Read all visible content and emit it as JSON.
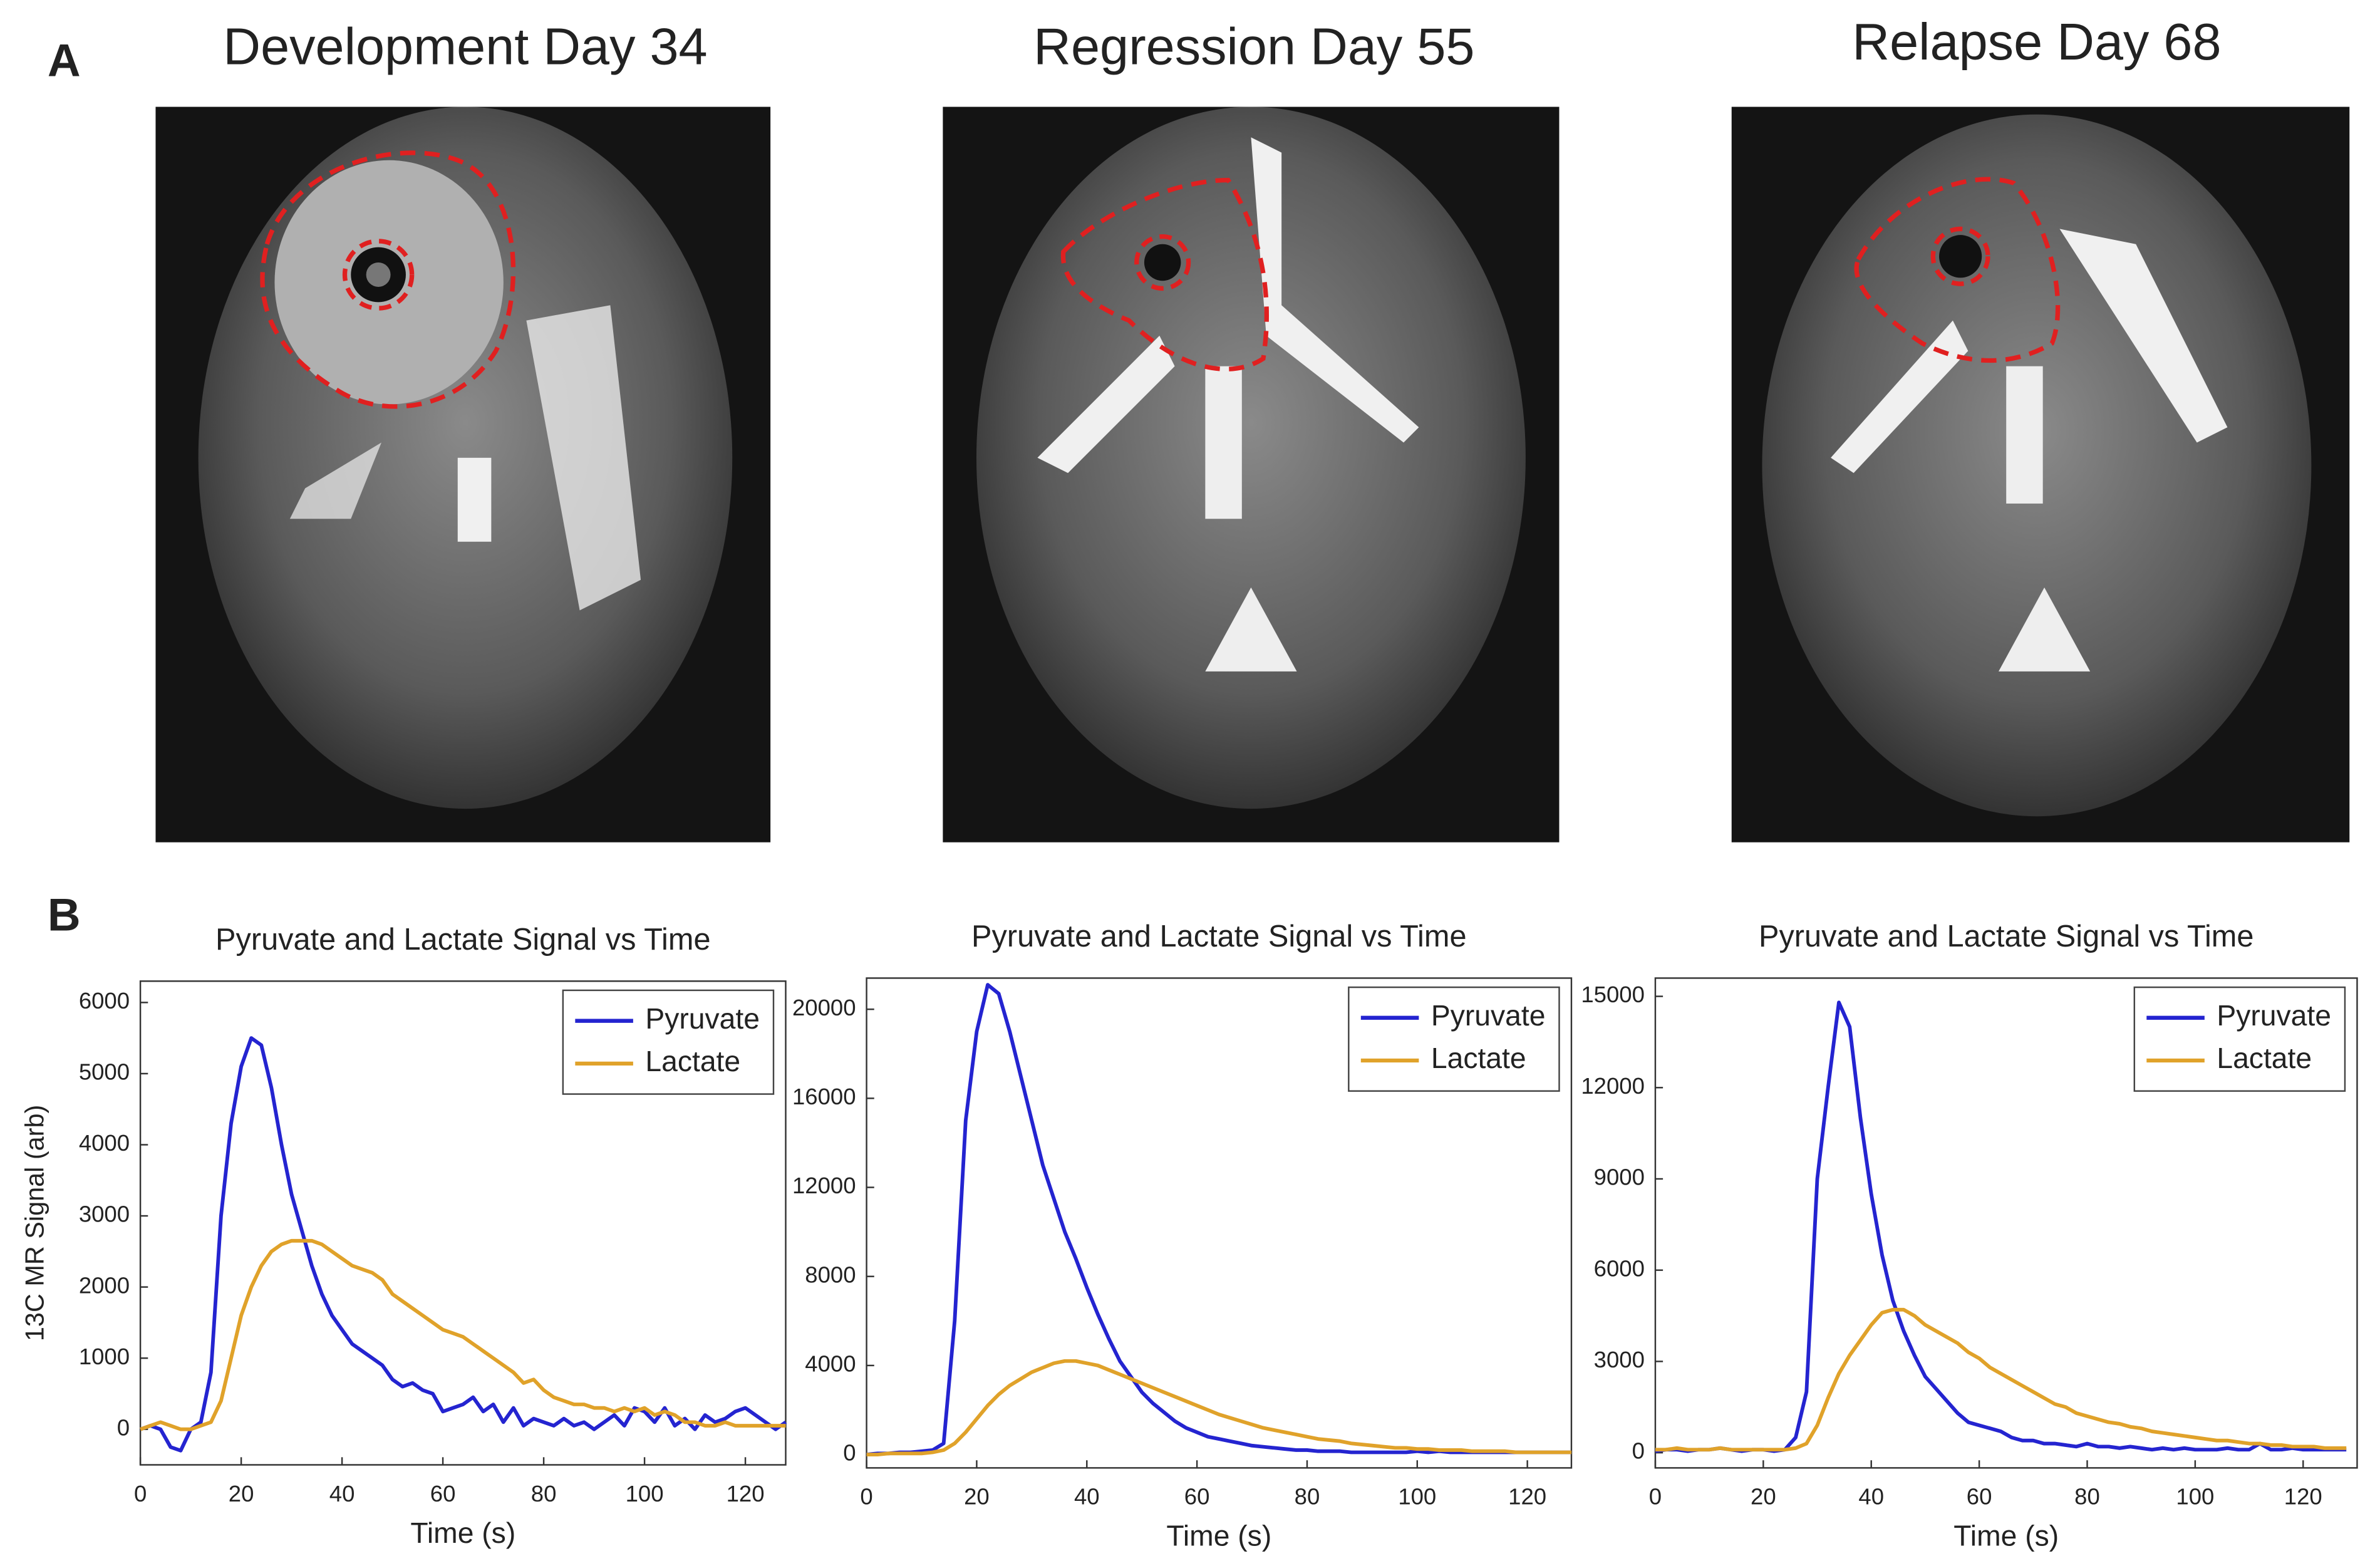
{
  "figure_labels": [
    "A",
    "B"
  ],
  "images": [
    {
      "title": "Development Day 34"
    },
    {
      "title": "Regression Day 55"
    },
    {
      "title": "Relapse Day 68"
    }
  ],
  "chart_data": [
    {
      "type": "line",
      "title": "Pyruvate and Lactate Signal vs Time",
      "xlabel": "Time (s)",
      "ylabel": "13C MR Signal (arb)",
      "x": [
        0,
        2,
        4,
        6,
        8,
        10,
        12,
        14,
        16,
        18,
        20,
        22,
        24,
        26,
        28,
        30,
        32,
        34,
        36,
        38,
        40,
        42,
        44,
        46,
        48,
        50,
        52,
        54,
        56,
        58,
        60,
        62,
        64,
        66,
        68,
        70,
        72,
        74,
        76,
        78,
        80,
        82,
        84,
        86,
        88,
        90,
        92,
        94,
        96,
        98,
        100,
        102,
        104,
        106,
        108,
        110,
        112,
        114,
        116,
        118,
        120,
        122,
        124,
        126,
        128
      ],
      "series": [
        {
          "name": "Pyruvate",
          "color": "#2424d0",
          "values": [
            0,
            50,
            0,
            -250,
            -300,
            0,
            100,
            800,
            3000,
            4300,
            5100,
            5500,
            5400,
            4800,
            4000,
            3300,
            2800,
            2300,
            1900,
            1600,
            1400,
            1200,
            1100,
            1000,
            900,
            700,
            600,
            650,
            550,
            500,
            250,
            300,
            350,
            450,
            250,
            350,
            100,
            300,
            50,
            150,
            100,
            50,
            150,
            50,
            100,
            0,
            100,
            200,
            50,
            300,
            250,
            100,
            300,
            50,
            150,
            0,
            200,
            100,
            150,
            250,
            300,
            200,
            100,
            0,
            100
          ]
        },
        {
          "name": "Lactate",
          "color": "#e0a22a",
          "values": [
            0,
            50,
            100,
            50,
            0,
            0,
            50,
            100,
            400,
            1000,
            1600,
            2000,
            2300,
            2500,
            2600,
            2650,
            2650,
            2650,
            2600,
            2500,
            2400,
            2300,
            2250,
            2200,
            2100,
            1900,
            1800,
            1700,
            1600,
            1500,
            1400,
            1350,
            1300,
            1200,
            1100,
            1000,
            900,
            800,
            650,
            700,
            550,
            450,
            400,
            350,
            350,
            300,
            300,
            250,
            300,
            250,
            300,
            200,
            250,
            200,
            100,
            100,
            50,
            50,
            100,
            50,
            50,
            50,
            50,
            50,
            50
          ]
        }
      ],
      "xlim": [
        0,
        128
      ],
      "xticks": [
        0,
        20,
        40,
        60,
        80,
        100,
        120
      ],
      "ylim": [
        -500,
        6300
      ],
      "yticks": [
        0,
        1000,
        2000,
        3000,
        4000,
        5000,
        6000
      ],
      "legend": "upper right",
      "grid": false
    },
    {
      "type": "line",
      "title": "Pyruvate and Lactate Signal vs Time",
      "xlabel": "Time (s)",
      "x": [
        0,
        2,
        4,
        6,
        8,
        10,
        12,
        14,
        16,
        18,
        20,
        22,
        24,
        26,
        28,
        30,
        32,
        34,
        36,
        38,
        40,
        42,
        44,
        46,
        48,
        50,
        52,
        54,
        56,
        58,
        60,
        62,
        64,
        66,
        68,
        70,
        72,
        74,
        76,
        78,
        80,
        82,
        84,
        86,
        88,
        90,
        92,
        94,
        96,
        98,
        100,
        102,
        104,
        106,
        108,
        110,
        112,
        114,
        116,
        118,
        120,
        122,
        124,
        126,
        128
      ],
      "series": [
        {
          "name": "Pyruvate",
          "color": "#2424d0",
          "values": [
            0,
            50,
            50,
            100,
            100,
            150,
            200,
            500,
            6000,
            15000,
            19000,
            21100,
            20700,
            19000,
            17000,
            15000,
            13000,
            11500,
            10000,
            8800,
            7500,
            6300,
            5200,
            4200,
            3500,
            2800,
            2300,
            1900,
            1500,
            1200,
            1000,
            800,
            700,
            600,
            500,
            400,
            350,
            300,
            250,
            200,
            200,
            150,
            150,
            150,
            100,
            100,
            100,
            100,
            100,
            100,
            150,
            100,
            150,
            100,
            100,
            100,
            100,
            100,
            100,
            100,
            100,
            100,
            100,
            100,
            100
          ]
        },
        {
          "name": "Lactate",
          "color": "#e0a22a",
          "values": [
            0,
            0,
            50,
            50,
            50,
            50,
            100,
            200,
            500,
            1000,
            1600,
            2200,
            2700,
            3100,
            3400,
            3700,
            3900,
            4100,
            4200,
            4200,
            4100,
            4000,
            3800,
            3600,
            3400,
            3200,
            3000,
            2800,
            2600,
            2400,
            2200,
            2000,
            1800,
            1650,
            1500,
            1350,
            1200,
            1100,
            1000,
            900,
            800,
            700,
            650,
            600,
            500,
            450,
            400,
            350,
            300,
            300,
            250,
            250,
            200,
            200,
            200,
            150,
            150,
            150,
            150,
            100,
            100,
            100,
            100,
            100,
            100
          ]
        }
      ],
      "xlim": [
        0,
        128
      ],
      "xticks": [
        0,
        20,
        40,
        60,
        80,
        100,
        120
      ],
      "ylim": [
        -600,
        21400
      ],
      "yticks": [
        0,
        4000,
        8000,
        12000,
        16000,
        20000
      ],
      "legend": "upper right",
      "grid": false
    },
    {
      "type": "line",
      "title": "Pyruvate and Lactate Signal vs Time",
      "xlabel": "Time (s)",
      "x": [
        0,
        2,
        4,
        6,
        8,
        10,
        12,
        14,
        16,
        18,
        20,
        22,
        24,
        26,
        28,
        30,
        32,
        34,
        36,
        38,
        40,
        42,
        44,
        46,
        48,
        50,
        52,
        54,
        56,
        58,
        60,
        62,
        64,
        66,
        68,
        70,
        72,
        74,
        76,
        78,
        80,
        82,
        84,
        86,
        88,
        90,
        92,
        94,
        96,
        98,
        100,
        102,
        104,
        106,
        108,
        110,
        112,
        114,
        116,
        118,
        120,
        122,
        124,
        126,
        128
      ],
      "series": [
        {
          "name": "Pyruvate",
          "color": "#2424d0",
          "values": [
            50,
            100,
            100,
            50,
            100,
            100,
            150,
            100,
            50,
            100,
            100,
            50,
            100,
            500,
            2000,
            9000,
            12000,
            14800,
            14000,
            11000,
            8500,
            6500,
            5000,
            4000,
            3200,
            2500,
            2100,
            1700,
            1300,
            1000,
            900,
            800,
            700,
            500,
            400,
            400,
            300,
            300,
            250,
            200,
            300,
            200,
            200,
            150,
            200,
            150,
            100,
            150,
            100,
            150,
            100,
            100,
            100,
            150,
            100,
            100,
            300,
            100,
            100,
            150,
            100,
            100,
            100,
            100,
            100
          ]
        },
        {
          "name": "Lactate",
          "color": "#e0a22a",
          "values": [
            100,
            100,
            150,
            100,
            100,
            100,
            150,
            100,
            100,
            100,
            100,
            100,
            100,
            150,
            300,
            900,
            1800,
            2600,
            3200,
            3700,
            4200,
            4600,
            4700,
            4700,
            4500,
            4200,
            4000,
            3800,
            3600,
            3300,
            3100,
            2800,
            2600,
            2400,
            2200,
            2000,
            1800,
            1600,
            1500,
            1300,
            1200,
            1100,
            1000,
            950,
            850,
            800,
            700,
            650,
            600,
            550,
            500,
            450,
            400,
            400,
            350,
            300,
            300,
            250,
            250,
            200,
            200,
            200,
            150,
            150,
            150
          ]
        }
      ],
      "xlim": [
        0,
        130
      ],
      "xticks": [
        0,
        20,
        40,
        60,
        80,
        100,
        120
      ],
      "ylim": [
        -500,
        15600
      ],
      "yticks": [
        0,
        3000,
        6000,
        9000,
        12000,
        15000
      ],
      "legend": "upper right",
      "grid": false
    }
  ]
}
